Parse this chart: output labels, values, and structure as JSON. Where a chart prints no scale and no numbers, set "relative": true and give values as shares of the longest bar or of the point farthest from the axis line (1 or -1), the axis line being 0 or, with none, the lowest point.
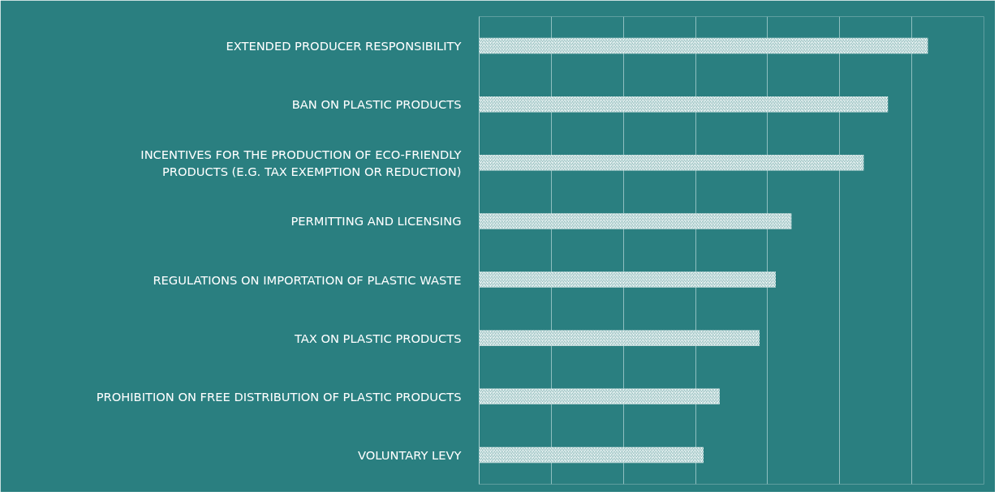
{
  "chart_data": {
    "type": "bar",
    "orientation": "horizontal",
    "relative": true,
    "grid": "x",
    "categories": [
      "EXTENDED PRODUCER RESPONSIBILITY",
      "BAN ON PLASTIC PRODUCTS",
      "INCENTIVES FOR THE PRODUCTION OF ECO-FRIENDLY PRODUCTS (E.G. TAX EXEMPTION OR REDUCTION)",
      "PERMITTING AND LICENSING",
      "REGULATIONS ON IMPORTATION OF PLASTIC WASTE",
      "TAX ON PLASTIC PRODUCTS",
      "PROHIBITION ON FREE DISTRIBUTION OF PLASTIC PRODUCTS",
      "VOLUNTARY LEVY"
    ],
    "values": [
      1,
      0.911,
      0.857,
      0.696,
      0.661,
      0.625,
      0.536,
      0.5
    ],
    "color": "#ffffff"
  }
}
